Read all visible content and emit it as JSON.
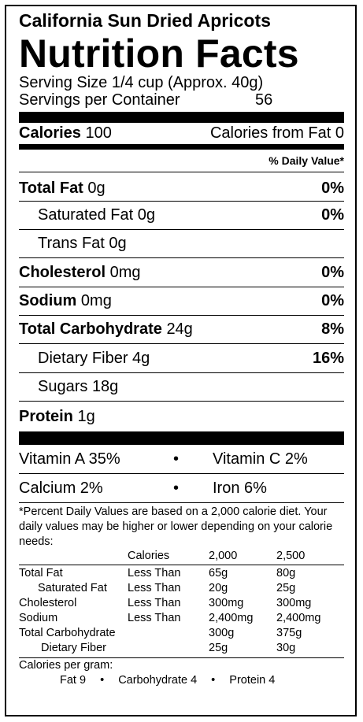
{
  "product_name": "California Sun Dried Apricots",
  "title": "Nutrition Facts",
  "serving_size": "Serving Size 1/4 cup (Approx. 40g)",
  "servings_label": "Servings per Container",
  "servings_value": "56",
  "calories_label": "Calories",
  "calories_value": "100",
  "calories_fat": "Calories from Fat 0",
  "dv_header": "% Daily Value*",
  "nutrients": [
    {
      "name": "Total Fat",
      "amount": "0g",
      "dv": "0%"
    },
    {
      "name": "Saturated Fat",
      "amount": "0g",
      "dv": "0%"
    },
    {
      "name": "Trans Fat",
      "amount": "0g",
      "dv": ""
    },
    {
      "name": "Cholesterol",
      "amount": "0mg",
      "dv": "0%"
    },
    {
      "name": "Sodium",
      "amount": "0mg",
      "dv": "0%"
    },
    {
      "name": "Total Carbohydrate",
      "amount": "24g",
      "dv": "8%"
    },
    {
      "name": "Dietary Fiber",
      "amount": "4g",
      "dv": "16%"
    },
    {
      "name": "Sugars",
      "amount": "18g",
      "dv": ""
    },
    {
      "name": "Protein",
      "amount": "1g",
      "dv": ""
    }
  ],
  "vitamins": {
    "a": "Vitamin A 35%",
    "c": "Vitamin C 2%",
    "calcium": "Calcium 2%",
    "iron": "Iron 6%",
    "bullet": "•"
  },
  "footnote": "*Percent Daily Values are based on a 2,000 calorie diet. Your daily values may be higher or lower depending on your calorie needs:",
  "dv_table": {
    "header": [
      "Calories",
      "2,000",
      "2,500"
    ],
    "rows": [
      [
        "Total Fat",
        "Less Than",
        "65g",
        "80g"
      ],
      [
        "Saturated Fat",
        "Less Than",
        "20g",
        "25g"
      ],
      [
        "Cholesterol",
        "Less Than",
        "300mg",
        "300mg"
      ],
      [
        "Sodium",
        "Less Than",
        "2,400mg",
        "2,400mg"
      ],
      [
        "Total Carbohydrate",
        "",
        "300g",
        "375g"
      ],
      [
        "Dietary Fiber",
        "",
        "25g",
        "30g"
      ]
    ]
  },
  "cal_per_gram_label": "Calories per gram:",
  "cal_per_gram": [
    "Fat 9",
    "Carbohydrate 4",
    "Protein 4"
  ]
}
